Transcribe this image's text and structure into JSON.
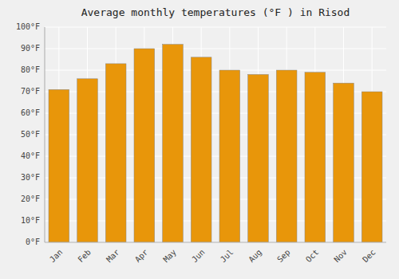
{
  "chart_data": {
    "type": "bar",
    "title": "Average monthly temperatures (°F ) in Risod",
    "categories": [
      "Jan",
      "Feb",
      "Mar",
      "Apr",
      "May",
      "Jun",
      "Jul",
      "Aug",
      "Sep",
      "Oct",
      "Nov",
      "Dec"
    ],
    "values": [
      71,
      76,
      83,
      90,
      92,
      86,
      80,
      78,
      80,
      79,
      74,
      70
    ],
    "color": "#E8960A",
    "ylim": [
      0,
      100
    ],
    "yticks": [
      {
        "value": 0,
        "label": "0°F"
      },
      {
        "value": 10,
        "label": "10°F"
      },
      {
        "value": 20,
        "label": "20°F"
      },
      {
        "value": 30,
        "label": "30°F"
      },
      {
        "value": 40,
        "label": "40°F"
      },
      {
        "value": 50,
        "label": "50°F"
      },
      {
        "value": 60,
        "label": "60°F"
      },
      {
        "value": 70,
        "label": "70°F"
      },
      {
        "value": 80,
        "label": "80°F"
      },
      {
        "value": 90,
        "label": "90°F"
      },
      {
        "value": 100,
        "label": "100°F"
      }
    ],
    "grid": true
  }
}
